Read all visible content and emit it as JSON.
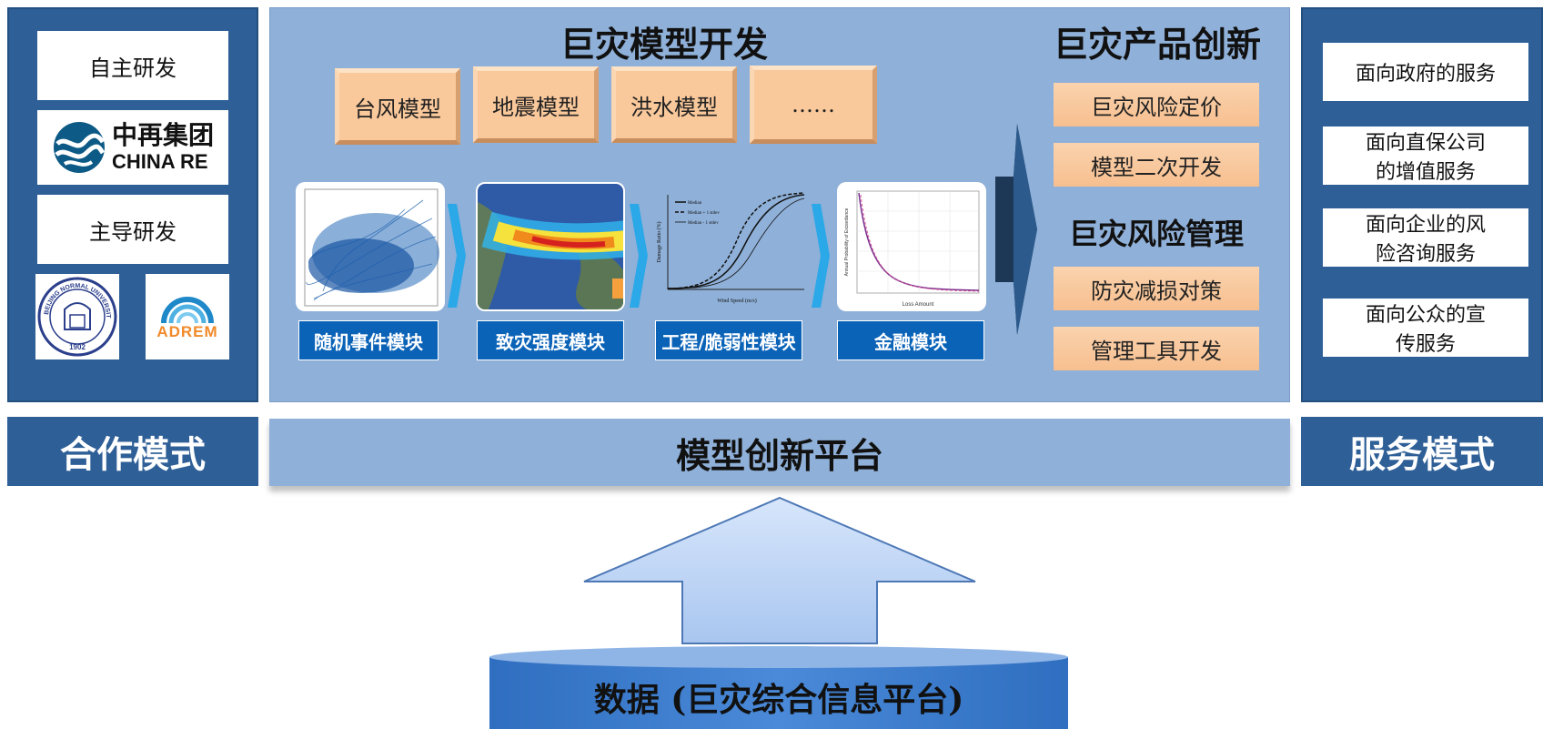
{
  "left_panel": {
    "items": [
      {
        "label": "自主研发"
      },
      {
        "label": "主导研发"
      }
    ],
    "china_re_logo": {
      "cn": "中再集团",
      "en": "CHINA RE"
    },
    "bnu_logo": {
      "ring_text": "BEIJING NORMAL UNIVERSITY",
      "year": "1902"
    },
    "adrem_logo": {
      "text": "ADREM"
    },
    "footer_label": "合作模式"
  },
  "center_panel": {
    "model_title": "巨灾模型开发",
    "models": [
      "台风模型",
      "地震模型",
      "洪水模型",
      "……"
    ],
    "modules": [
      "随机事件模块",
      "致灾强度模块",
      "工程/脆弱性模块",
      "金融模块"
    ],
    "fragility_chart_legend": [
      "Median",
      "Median + 1 stdev",
      "Median - 1 stdev"
    ],
    "fragility_chart_xlabel": "Wind Speed (m/s)",
    "fragility_chart_ylabel": "Damage Ratio (%)",
    "loss_chart_xlabel": "Loss Amount",
    "loss_chart_ylabel": "Annual Probability of Exceedance"
  },
  "innovation": {
    "title": "巨灾产品创新",
    "items": [
      "巨灾风险定价",
      "模型二次开发"
    ],
    "mgmt_title": "巨灾风险管理",
    "mgmt_items": [
      "防灾减损对策",
      "管理工具开发"
    ]
  },
  "platform_label": "模型创新平台",
  "right_panel": {
    "items": [
      "面向政府的服务",
      "面向直保公司的增值服务",
      "面向企业的风险咨询服务",
      "面向公众的宣传服务"
    ],
    "footer_label": "服务模式"
  },
  "data_platform_label": "数据 (巨灾综合信息平台)",
  "colors": {
    "dark_blue": "#2e5f97",
    "light_blue": "#8fb0d8",
    "peach": "#f8c49a",
    "module_blue": "#0b63b8"
  }
}
